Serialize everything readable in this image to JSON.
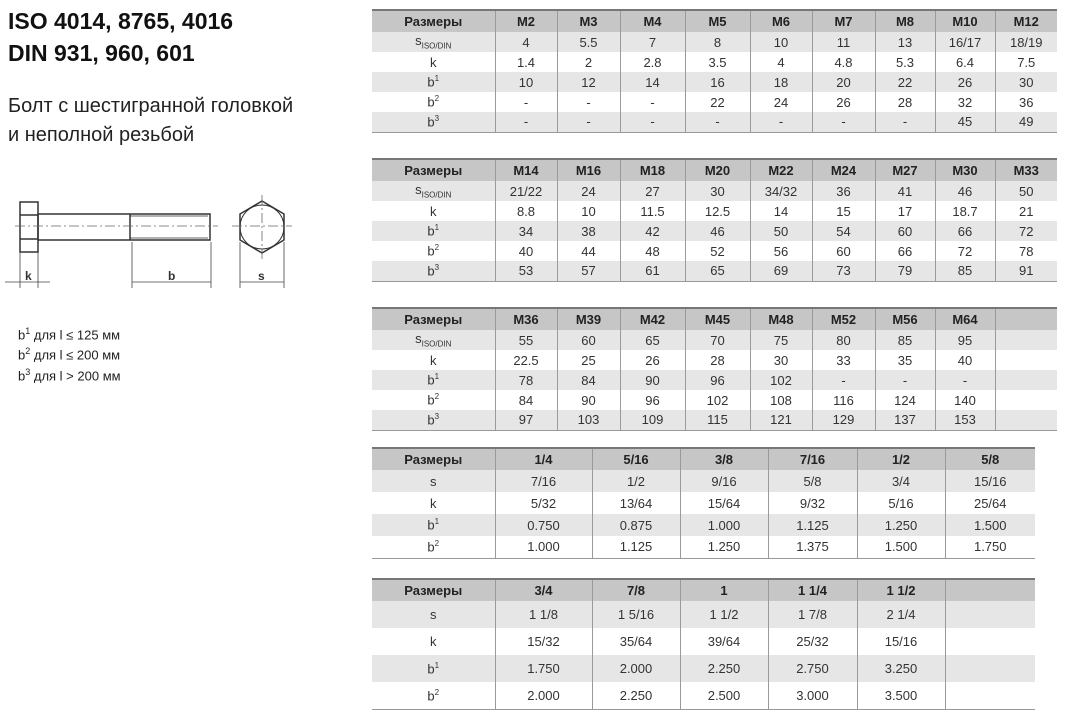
{
  "title_line1": "ISO 4014, 8765, 4016",
  "title_line2": "DIN 931, 960, 601",
  "subtitle_line1": "Болт с шестигранной головкой",
  "subtitle_line2": "и неполной резьбой",
  "drawing_labels": {
    "k": "k",
    "b": "b",
    "s": "s"
  },
  "notes": [
    {
      "base": "b",
      "sup": "1",
      "text": " для l ≤ 125 мм"
    },
    {
      "base": "b",
      "sup": "2",
      "text": " для l ≤ 200 мм"
    },
    {
      "base": "b",
      "sup": "3",
      "text": " для l > 200 мм"
    }
  ],
  "tables": [
    {
      "header": [
        "Размеры",
        "M2",
        "M3",
        "M4",
        "M5",
        "M6",
        "M7",
        "M8",
        "M10",
        "M12"
      ],
      "rows": [
        {
          "label": "s",
          "sub": "ISO/DIN",
          "values": [
            "4",
            "5.5",
            "7",
            "8",
            "10",
            "11",
            "13",
            "16/17",
            "18/19"
          ]
        },
        {
          "label": "k",
          "values": [
            "1.4",
            "2",
            "2.8",
            "3.5",
            "4",
            "4.8",
            "5.3",
            "6.4",
            "7.5"
          ]
        },
        {
          "label": "b",
          "sup": "1",
          "values": [
            "10",
            "12",
            "14",
            "16",
            "18",
            "20",
            "22",
            "26",
            "30"
          ]
        },
        {
          "label": "b",
          "sup": "2",
          "values": [
            "-",
            "-",
            "-",
            "22",
            "24",
            "26",
            "28",
            "32",
            "36"
          ]
        },
        {
          "label": "b",
          "sup": "3",
          "values": [
            "-",
            "-",
            "-",
            "-",
            "-",
            "-",
            "-",
            "45",
            "49"
          ]
        }
      ]
    },
    {
      "header": [
        "Размеры",
        "M14",
        "M16",
        "M18",
        "M20",
        "M22",
        "M24",
        "M27",
        "M30",
        "M33"
      ],
      "rows": [
        {
          "label": "s",
          "sub": "ISO/DIN",
          "values": [
            "21/22",
            "24",
            "27",
            "30",
            "34/32",
            "36",
            "41",
            "46",
            "50"
          ]
        },
        {
          "label": "k",
          "values": [
            "8.8",
            "10",
            "11.5",
            "12.5",
            "14",
            "15",
            "17",
            "18.7",
            "21"
          ]
        },
        {
          "label": "b",
          "sup": "1",
          "values": [
            "34",
            "38",
            "42",
            "46",
            "50",
            "54",
            "60",
            "66",
            "72"
          ]
        },
        {
          "label": "b",
          "sup": "2",
          "values": [
            "40",
            "44",
            "48",
            "52",
            "56",
            "60",
            "66",
            "72",
            "78"
          ]
        },
        {
          "label": "b",
          "sup": "3",
          "values": [
            "53",
            "57",
            "61",
            "65",
            "69",
            "73",
            "79",
            "85",
            "91"
          ]
        }
      ]
    },
    {
      "header": [
        "Размеры",
        "M36",
        "M39",
        "M42",
        "M45",
        "M48",
        "M52",
        "M56",
        "M64",
        ""
      ],
      "rows": [
        {
          "label": "s",
          "sub": "ISO/DIN",
          "values": [
            "55",
            "60",
            "65",
            "70",
            "75",
            "80",
            "85",
            "95",
            ""
          ]
        },
        {
          "label": "k",
          "values": [
            "22.5",
            "25",
            "26",
            "28",
            "30",
            "33",
            "35",
            "40",
            ""
          ]
        },
        {
          "label": "b",
          "sup": "1",
          "values": [
            "78",
            "84",
            "90",
            "96",
            "102",
            "-",
            "-",
            "-",
            ""
          ]
        },
        {
          "label": "b",
          "sup": "2",
          "values": [
            "84",
            "90",
            "96",
            "102",
            "108",
            "116",
            "124",
            "140",
            ""
          ]
        },
        {
          "label": "b",
          "sup": "3",
          "values": [
            "97",
            "103",
            "109",
            "115",
            "121",
            "129",
            "137",
            "153",
            ""
          ]
        }
      ]
    },
    {
      "header": [
        "Размеры",
        "1/4",
        "5/16",
        "3/8",
        "7/16",
        "1/2",
        "5/8"
      ],
      "rows": [
        {
          "label": "s",
          "values": [
            "7/16",
            "1/2",
            "9/16",
            "5/8",
            "3/4",
            "15/16"
          ]
        },
        {
          "label": "k",
          "values": [
            "5/32",
            "13/64",
            "15/64",
            "9/32",
            "5/16",
            "25/64"
          ]
        },
        {
          "label": "b",
          "sup": "1",
          "values": [
            "0.750",
            "0.875",
            "1.000",
            "1.125",
            "1.250",
            "1.500"
          ]
        },
        {
          "label": "b",
          "sup": "2",
          "values": [
            "1.000",
            "1.125",
            "1.250",
            "1.375",
            "1.500",
            "1.750"
          ]
        }
      ]
    },
    {
      "header": [
        "Размеры",
        "3/4",
        "7/8",
        "1",
        "1 1/4",
        "1 1/2",
        ""
      ],
      "rows": [
        {
          "label": "s",
          "values": [
            "1 1/8",
            "1 5/16",
            "1 1/2",
            "1 7/8",
            "2 1/4",
            ""
          ]
        },
        {
          "label": "k",
          "values": [
            "15/32",
            "35/64",
            "39/64",
            "25/32",
            "15/16",
            ""
          ]
        },
        {
          "label": "b",
          "sup": "1",
          "values": [
            "1.750",
            "2.000",
            "2.250",
            "2.750",
            "3.250",
            ""
          ]
        },
        {
          "label": "b",
          "sup": "2",
          "values": [
            "2.000",
            "2.250",
            "2.500",
            "3.000",
            "3.500",
            ""
          ]
        }
      ]
    }
  ]
}
